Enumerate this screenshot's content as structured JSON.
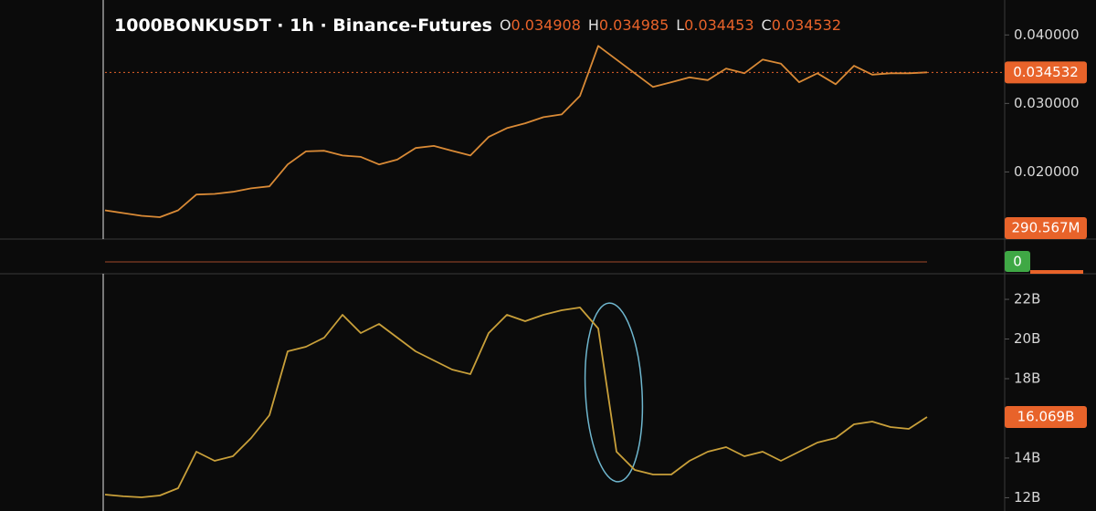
{
  "header": {
    "title": "1000BONKUSDT · 1h · Binance-Futures",
    "ohlc": [
      {
        "key": "O",
        "value": 0.034908
      },
      {
        "key": "H",
        "value": 0.034985
      },
      {
        "key": "L",
        "value": 0.034453
      },
      {
        "key": "C",
        "value": 0.034532
      }
    ]
  },
  "volume_label": "290.567M",
  "indicator_label": "0",
  "chart_data": [
    {
      "type": "line",
      "color": "#d98a36",
      "tag_color": "#e8632a",
      "ylim": [
        0.0102,
        0.0451
      ],
      "yticks": [
        {
          "value": 0.04,
          "label": "0.040000"
        },
        {
          "value": 0.03,
          "label": "0.030000"
        },
        {
          "value": 0.02,
          "label": "0.020000"
        }
      ],
      "values": [
        0.0144,
        0.014,
        0.0136,
        0.0134,
        0.0144,
        0.0167,
        0.0168,
        0.0171,
        0.0176,
        0.0179,
        0.0211,
        0.023,
        0.0231,
        0.0224,
        0.0222,
        0.0211,
        0.0218,
        0.0235,
        0.0238,
        0.0231,
        0.0224,
        0.0251,
        0.0264,
        0.0271,
        0.028,
        0.0284,
        0.0311,
        0.0384,
        0.0364,
        0.0344,
        0.0324,
        0.0331,
        0.0338,
        0.0334,
        0.0351,
        0.0344,
        0.0364,
        0.0358,
        0.0331,
        0.0344,
        0.0328,
        0.0355,
        0.0342,
        0.0344,
        0.0344,
        0.034532
      ],
      "last_label": "0.034532",
      "last_line": true
    },
    {
      "type": "line",
      "color": "#c9a03a",
      "tag_color": "#e8632a",
      "ylim": [
        11.33,
        23.29
      ],
      "yticks": [
        {
          "value": 22,
          "label": "22B"
        },
        {
          "value": 20,
          "label": "20B"
        },
        {
          "value": 18,
          "label": "18B"
        },
        {
          "value": 14,
          "label": "14B"
        },
        {
          "value": 12,
          "label": "12B"
        }
      ],
      "values": [
        12.16,
        12.07,
        12.02,
        12.11,
        12.48,
        14.32,
        13.86,
        14.09,
        15.01,
        16.16,
        19.38,
        19.61,
        20.07,
        21.22,
        20.3,
        20.76,
        20.07,
        19.38,
        18.92,
        18.46,
        18.23,
        20.3,
        21.22,
        20.9,
        21.22,
        21.45,
        21.59,
        20.53,
        14.32,
        13.4,
        13.17,
        13.17,
        13.86,
        14.32,
        14.55,
        14.09,
        14.32,
        13.86,
        14.32,
        14.78,
        15.01,
        15.7,
        15.84,
        15.56,
        15.47,
        16.069
      ],
      "last_label": "16.069B",
      "last_line": false
    }
  ]
}
